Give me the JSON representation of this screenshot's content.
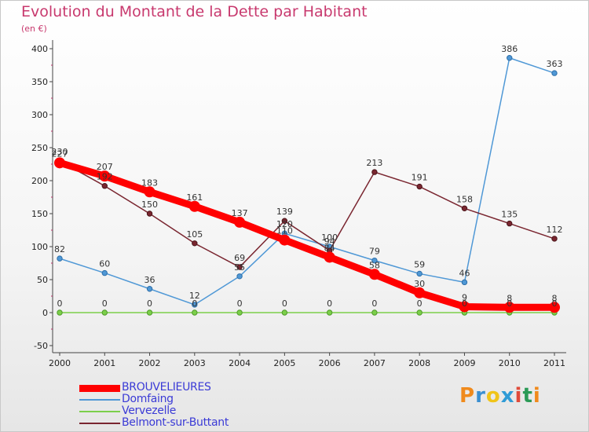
{
  "title": "Evolution du Montant de la Dette par Habitant",
  "unit": "(en €)",
  "logo": {
    "text": "Proxiti",
    "letters": [
      "P",
      "r",
      "o",
      "x",
      "i",
      "t",
      "i"
    ],
    "colors": [
      "#f08a1c",
      "#3a8fd1",
      "#f0c419",
      "#2f9bd6",
      "#e04b3a",
      "#2b9a56",
      "#f08a1c"
    ]
  },
  "chart_data": {
    "type": "line",
    "title": "Evolution du Montant de la Dette par Habitant",
    "subtitle": "(en €)",
    "x": [
      "2000",
      "2001",
      "2002",
      "2003",
      "2004",
      "2005",
      "2006",
      "2007",
      "2008",
      "2009",
      "2010",
      "2011"
    ],
    "ylim": [
      -50,
      400
    ],
    "yticks": [
      -50,
      0,
      50,
      100,
      150,
      200,
      250,
      300,
      350,
      400
    ],
    "grid": false,
    "legend": "bottom-left",
    "series": [
      {
        "name": "BROUVELIEURES",
        "color": "#ff0000",
        "values": [
          227,
          207,
          183,
          161,
          137,
          110,
          84,
          58,
          30,
          9,
          8,
          8
        ],
        "labels": [
          "227",
          "207",
          "183",
          "161",
          "137",
          "110",
          "84",
          "58",
          "30",
          "9",
          "8",
          "8"
        ]
      },
      {
        "name": "Domfaing",
        "color": "#4f98d6",
        "values": [
          82,
          60,
          36,
          12,
          55,
          120,
          100,
          79,
          59,
          46,
          386,
          363
        ],
        "labels": [
          "82",
          "60",
          "36",
          "12",
          "55",
          "120",
          "100",
          "79",
          "59",
          "46",
          "386",
          "363"
        ]
      },
      {
        "name": "Vervezelle",
        "color": "#7ccf4a",
        "values": [
          0,
          0,
          0,
          0,
          0,
          0,
          0,
          0,
          0,
          0,
          0,
          0
        ],
        "labels": [
          "0",
          "0",
          "0",
          "0",
          "0",
          "0",
          "0",
          "0",
          "0",
          "0",
          "0",
          "0"
        ]
      },
      {
        "name": "Belmont-sur-Buttant",
        "color": "#7a2630",
        "values": [
          230,
          192,
          150,
          105,
          69,
          139,
          94,
          213,
          191,
          158,
          135,
          112
        ],
        "labels": [
          "230",
          "192",
          "150",
          "105",
          "69",
          "139",
          "94",
          "213",
          "191",
          "158",
          "135",
          "112"
        ]
      }
    ]
  }
}
